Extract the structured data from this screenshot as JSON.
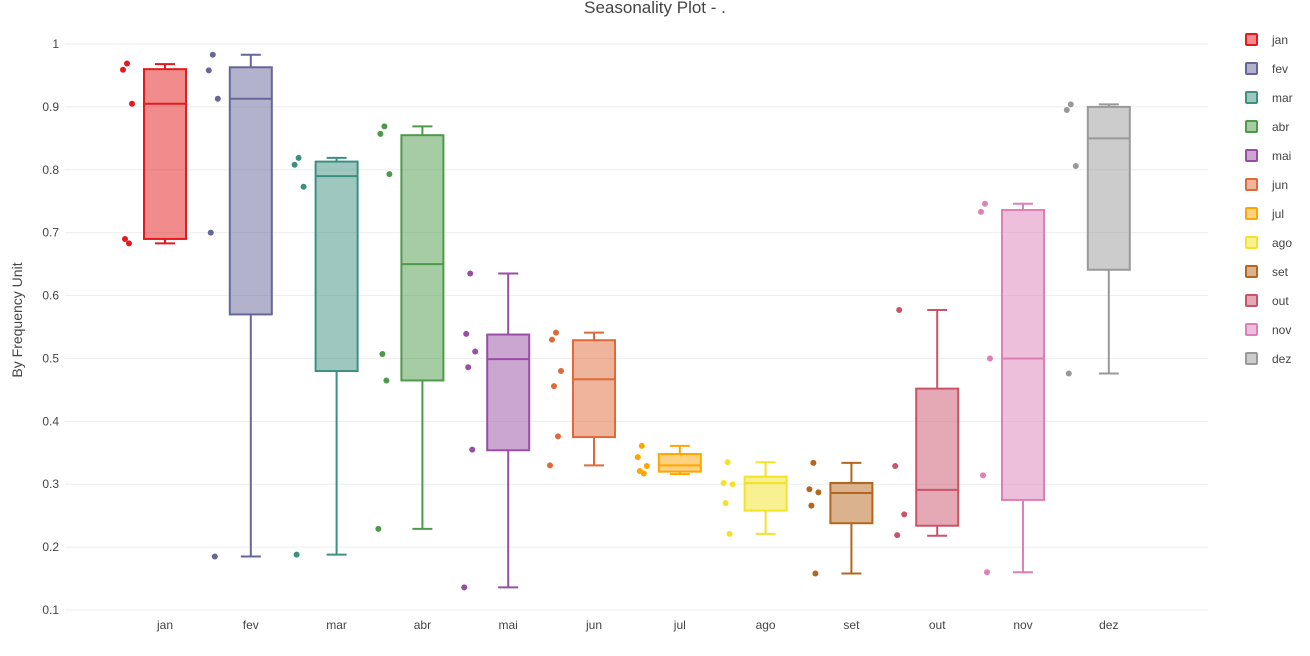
{
  "chart_data": {
    "type": "box",
    "title": "Seasonality Plot - .",
    "xlabel": "",
    "ylabel": "By Frequency Unit",
    "ylim": [
      0.1,
      1.0
    ],
    "yticks": [
      "0.1",
      "0.2",
      "0.3",
      "0.4",
      "0.5",
      "0.6",
      "0.7",
      "0.8",
      "0.9",
      "1"
    ],
    "grid": true,
    "legend_position": "right",
    "categories": [
      "jan",
      "fev",
      "mar",
      "abr",
      "mai",
      "jun",
      "jul",
      "ago",
      "set",
      "out",
      "nov",
      "dez"
    ],
    "series": [
      {
        "name": "jan",
        "color": "#e41a1c",
        "q1": 0.69,
        "median": 0.905,
        "q3": 0.96,
        "whisker_low": 0.683,
        "whisker_high": 0.968,
        "points": [
          0.969,
          0.959,
          0.905,
          0.69,
          0.683
        ]
      },
      {
        "name": "fev",
        "color": "#666699",
        "q1": 0.57,
        "median": 0.913,
        "q3": 0.963,
        "whisker_low": 0.185,
        "whisker_high": 0.983,
        "points": [
          0.983,
          0.958,
          0.913,
          0.7,
          0.185
        ]
      },
      {
        "name": "mar",
        "color": "#3d8f80",
        "q1": 0.48,
        "median": 0.79,
        "q3": 0.813,
        "whisker_low": 0.188,
        "whisker_high": 0.819,
        "points": [
          0.819,
          0.808,
          0.773,
          0.188
        ]
      },
      {
        "name": "abr",
        "color": "#4d9a4a",
        "q1": 0.465,
        "median": 0.65,
        "q3": 0.855,
        "whisker_low": 0.229,
        "whisker_high": 0.869,
        "points": [
          0.869,
          0.857,
          0.793,
          0.507,
          0.465,
          0.229
        ]
      },
      {
        "name": "mai",
        "color": "#984ea3",
        "q1": 0.354,
        "median": 0.499,
        "q3": 0.538,
        "whisker_low": 0.136,
        "whisker_high": 0.635,
        "points": [
          0.635,
          0.539,
          0.511,
          0.486,
          0.355,
          0.136
        ]
      },
      {
        "name": "jun",
        "color": "#e0693a",
        "q1": 0.375,
        "median": 0.467,
        "q3": 0.529,
        "whisker_low": 0.33,
        "whisker_high": 0.541,
        "points": [
          0.541,
          0.53,
          0.48,
          0.456,
          0.376,
          0.33
        ]
      },
      {
        "name": "jul",
        "color": "#ffa500",
        "q1": 0.32,
        "median": 0.33,
        "q3": 0.348,
        "whisker_low": 0.316,
        "whisker_high": 0.361,
        "points": [
          0.361,
          0.343,
          0.329,
          0.321,
          0.317
        ]
      },
      {
        "name": "ago",
        "color": "#f2e326",
        "q1": 0.258,
        "median": 0.302,
        "q3": 0.312,
        "whisker_low": 0.221,
        "whisker_high": 0.335,
        "points": [
          0.335,
          0.302,
          0.3,
          0.27,
          0.221
        ]
      },
      {
        "name": "set",
        "color": "#b5651d",
        "q1": 0.238,
        "median": 0.286,
        "q3": 0.302,
        "whisker_low": 0.158,
        "whisker_high": 0.334,
        "points": [
          0.334,
          0.292,
          0.287,
          0.266,
          0.158
        ]
      },
      {
        "name": "out",
        "color": "#c9546a",
        "q1": 0.234,
        "median": 0.291,
        "q3": 0.452,
        "whisker_low": 0.218,
        "whisker_high": 0.577,
        "points": [
          0.577,
          0.329,
          0.252,
          0.219
        ]
      },
      {
        "name": "nov",
        "color": "#de7fb8",
        "q1": 0.275,
        "median": 0.5,
        "q3": 0.736,
        "whisker_low": 0.16,
        "whisker_high": 0.746,
        "points": [
          0.746,
          0.733,
          0.5,
          0.314,
          0.16
        ]
      },
      {
        "name": "dez",
        "color": "#999999",
        "q1": 0.641,
        "median": 0.85,
        "q3": 0.9,
        "whisker_low": 0.476,
        "whisker_high": 0.904,
        "points": [
          0.904,
          0.895,
          0.806,
          0.476
        ]
      }
    ]
  }
}
